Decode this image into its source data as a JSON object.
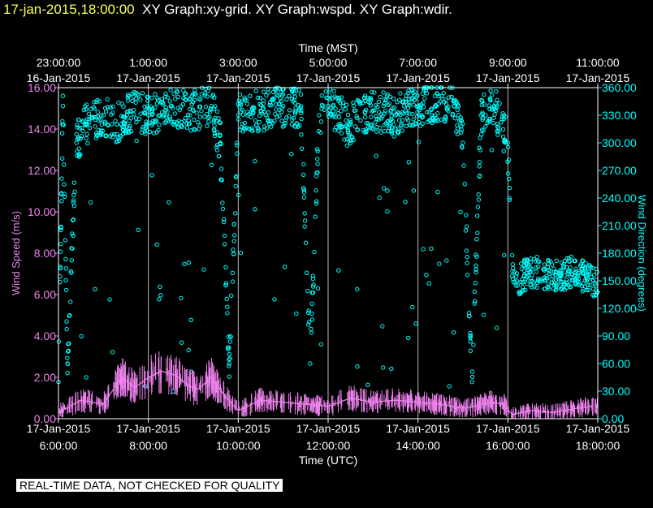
{
  "header": {
    "date": "17-jan-2015,18:00:00",
    "graphs": "XY Graph:xy-grid.  XY Graph:wspd.  XY Graph:wdir."
  },
  "notice": "REAL-TIME DATA, NOT CHECKED FOR QUALITY",
  "colors": {
    "wspd": "#ee82ee",
    "wdir": "#00ffff",
    "axes": "#ffffff",
    "header_date": "#ffff55"
  },
  "chart_data": {
    "type": "scatter",
    "title": "",
    "x_top_label": "Time (MST)",
    "x_bottom_label": "Time (UTC)",
    "y_left_label": "Wind Speed (m/s)",
    "y_right_label": "Wind Direction (degrees)",
    "x_range_utc_hours": [
      6,
      18
    ],
    "y_left_range": [
      0,
      16
    ],
    "y_right_range": [
      0,
      360
    ],
    "grid": "vertical lines at each 2-hour UTC tick",
    "top_ticks": [
      {
        "time": "23:00:00",
        "date": "16-Jan-2015"
      },
      {
        "time": "1:00:00",
        "date": "17-Jan-2015"
      },
      {
        "time": "3:00:00",
        "date": "17-Jan-2015"
      },
      {
        "time": "5:00:00",
        "date": "17-Jan-2015"
      },
      {
        "time": "7:00:00",
        "date": "17-Jan-2015"
      },
      {
        "time": "9:00:00",
        "date": "17-Jan-2015"
      },
      {
        "time": "11:00:00",
        "date": "17-Jan-2015"
      }
    ],
    "bottom_ticks": [
      {
        "date": "17-Jan-2015",
        "time": "6:00:00"
      },
      {
        "date": "17-Jan-2015",
        "time": "8:00:00"
      },
      {
        "date": "17-Jan-2015",
        "time": "10:00:00"
      },
      {
        "date": "17-Jan-2015",
        "time": "12:00:00"
      },
      {
        "date": "17-Jan-2015",
        "time": "14:00:00"
      },
      {
        "date": "17-Jan-2015",
        "time": "16:00:00"
      },
      {
        "date": "17-Jan-2015",
        "time": "18:00:00"
      }
    ],
    "y_left_ticks": [
      "0.00",
      "2.00",
      "4.00",
      "6.00",
      "8.00",
      "10.00",
      "12.00",
      "14.00",
      "16.00"
    ],
    "y_right_ticks": [
      "0.00",
      "30.00",
      "60.00",
      "90.00",
      "120.00",
      "150.00",
      "180.00",
      "210.00",
      "240.00",
      "270.00",
      "300.00",
      "330.00",
      "360.00"
    ],
    "series": [
      {
        "name": "wspd",
        "axis": "left",
        "x": [
          6.0,
          6.5,
          7.0,
          7.4,
          7.7,
          8.0,
          8.3,
          8.6,
          8.9,
          9.1,
          9.4,
          9.7,
          10.0,
          10.5,
          11.0,
          11.5,
          12.0,
          12.5,
          13.0,
          13.5,
          14.0,
          14.5,
          15.0,
          15.3,
          15.6,
          15.9,
          16.1,
          16.5,
          17.0,
          17.5,
          17.9
        ],
        "y": [
          0.3,
          0.9,
          0.7,
          2.0,
          1.5,
          2.0,
          2.3,
          2.1,
          1.6,
          1.4,
          2.0,
          1.1,
          0.4,
          0.9,
          0.8,
          0.7,
          0.6,
          1.0,
          0.8,
          0.9,
          0.8,
          0.7,
          0.5,
          0.6,
          0.8,
          0.7,
          0.2,
          0.4,
          0.3,
          0.5,
          0.6
        ]
      },
      {
        "name": "wdir",
        "axis": "right",
        "x": [
          6.0,
          6.1,
          6.2,
          6.4,
          6.6,
          7.0,
          7.3,
          7.6,
          8.0,
          8.5,
          9.0,
          9.4,
          9.6,
          9.8,
          10.0,
          10.5,
          11.0,
          11.4,
          11.6,
          11.8,
          12.0,
          12.5,
          13.0,
          13.5,
          14.0,
          14.5,
          14.8,
          15.0,
          15.2,
          15.4,
          15.7,
          16.0,
          16.1,
          16.2,
          16.5,
          17.0,
          17.5,
          17.9
        ],
        "y": [
          40,
          340,
          60,
          300,
          320,
          330,
          320,
          335,
          330,
          340,
          335,
          340,
          300,
          60,
          330,
          335,
          340,
          335,
          60,
          330,
          340,
          320,
          335,
          330,
          340,
          345,
          340,
          300,
          40,
          330,
          340,
          300,
          160,
          150,
          160,
          155,
          160,
          150
        ]
      }
    ]
  }
}
